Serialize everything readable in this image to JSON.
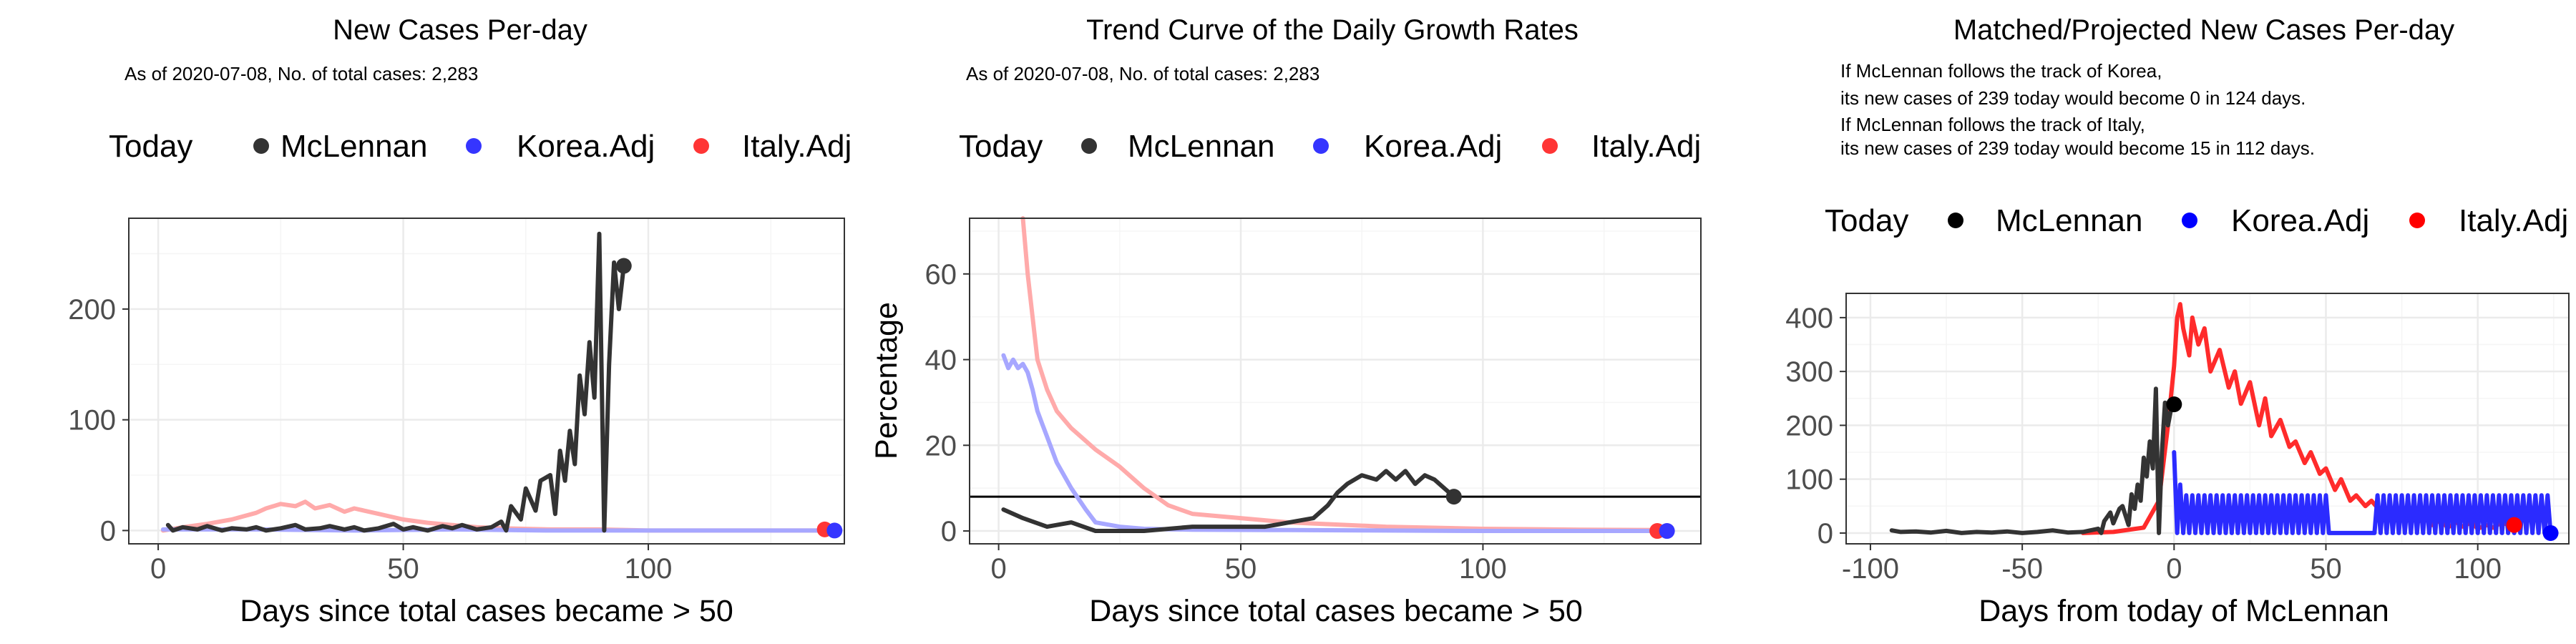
{
  "colors": {
    "today": "#000000",
    "mclennan": "#333333",
    "korea": "#3535ff",
    "italy": "#ff3535",
    "korea_faded": "#a7a7ff",
    "italy_faded": "#ffaaaa",
    "grid_major": "#ebebeb",
    "grid_minor": "#f5f5f5"
  },
  "legend": {
    "today": "Today",
    "mclennan": "McLennan",
    "korea": "Korea.Adj",
    "italy": "Italy.Adj"
  },
  "panels": [
    {
      "title": "New Cases Per-day",
      "subtitle": [
        "As of 2020-07-08, No. of total cases: 2,283"
      ]
    },
    {
      "title": "Trend Curve of the Daily Growth Rates",
      "subtitle": [
        "As of 2020-07-08, No. of total cases: 2,283"
      ]
    },
    {
      "title": "Matched/Projected New Cases Per-day",
      "subtitle": [
        "If McLennan follows the track of Korea,",
        "its new cases of 239 today would become 0 in 124 days.",
        "If McLennan follows the track of Italy,",
        "its new cases of 239 today would become 15 in 112 days."
      ]
    }
  ],
  "chart_data": [
    {
      "type": "line",
      "title": "New Cases Per-day",
      "xlabel": "Days since total cases became > 50",
      "ylabel": "",
      "xlim": [
        -6,
        140
      ],
      "ylim": [
        -12,
        282
      ],
      "xticks": [
        0,
        50,
        100
      ],
      "yticks": [
        0,
        100,
        200
      ],
      "series": [
        {
          "name": "Italy.Adj",
          "style": "faded",
          "x": [
            1,
            5,
            10,
            15,
            20,
            22,
            25,
            28,
            30,
            32,
            35,
            38,
            40,
            45,
            50,
            55,
            60,
            65,
            70,
            80,
            90,
            100,
            110,
            120,
            130,
            138
          ],
          "y": [
            0,
            3,
            6,
            10,
            16,
            20,
            24,
            22,
            26,
            20,
            23,
            17,
            20,
            15,
            10,
            7,
            5,
            3,
            2,
            1,
            1,
            0,
            0,
            0,
            0,
            0
          ]
        },
        {
          "name": "Korea.Adj",
          "style": "faded",
          "x": [
            1,
            20,
            40,
            60,
            80,
            100,
            120,
            139
          ],
          "y": [
            1,
            1,
            0,
            1,
            0,
            0,
            0,
            0
          ]
        },
        {
          "name": "McLennan",
          "style": "solid",
          "x": [
            2,
            3,
            5,
            8,
            10,
            13,
            15,
            18,
            20,
            22,
            25,
            28,
            30,
            33,
            35,
            38,
            40,
            42,
            45,
            48,
            50,
            52,
            55,
            58,
            60,
            62,
            65,
            68,
            70,
            71,
            72,
            74,
            75,
            77,
            78,
            80,
            81,
            82,
            83,
            84,
            85,
            86,
            87,
            88,
            89,
            90,
            91,
            92,
            93,
            94,
            95
          ],
          "y": [
            5,
            0,
            3,
            1,
            4,
            0,
            2,
            1,
            3,
            0,
            2,
            5,
            1,
            2,
            4,
            1,
            3,
            0,
            2,
            6,
            1,
            3,
            0,
            4,
            2,
            5,
            1,
            3,
            8,
            0,
            22,
            10,
            38,
            18,
            45,
            50,
            15,
            72,
            45,
            90,
            60,
            140,
            105,
            170,
            120,
            268,
            0,
            150,
            242,
            200,
            239
          ]
        }
      ],
      "today_points": [
        {
          "series": "McLennan",
          "x": 95,
          "y": 239
        },
        {
          "series": "Italy.Adj",
          "x": 136,
          "y": 1
        },
        {
          "series": "Korea.Adj",
          "x": 138,
          "y": 0
        }
      ]
    },
    {
      "type": "line",
      "title": "Trend Curve of the Daily Growth Rates",
      "xlabel": "Days since total cases became > 50",
      "ylabel": "Percentage",
      "xlim": [
        -6,
        145
      ],
      "ylim": [
        -3,
        73
      ],
      "xticks": [
        0,
        50,
        100
      ],
      "yticks": [
        0,
        20,
        40,
        60
      ],
      "hline": 8,
      "series": [
        {
          "name": "Italy.Adj",
          "style": "faded",
          "x": [
            5,
            6,
            7,
            8,
            10,
            12,
            15,
            18,
            20,
            25,
            30,
            35,
            40,
            50,
            60,
            70,
            80,
            100,
            120,
            138
          ],
          "y": [
            73,
            60,
            50,
            40,
            33,
            28,
            24,
            21,
            19,
            15,
            10,
            6,
            4,
            3,
            2,
            1.5,
            1,
            0.5,
            0.3,
            0.2
          ]
        },
        {
          "name": "Korea.Adj",
          "style": "faded",
          "x": [
            1,
            2,
            3,
            4,
            5,
            6,
            7,
            8,
            9,
            10,
            12,
            15,
            18,
            20,
            25,
            30,
            40,
            60,
            80,
            100,
            120,
            139
          ],
          "y": [
            41,
            38,
            40,
            38,
            39,
            37,
            33,
            28,
            25,
            22,
            16,
            10,
            5,
            2,
            1,
            0.5,
            0.3,
            0.2,
            0.1,
            0,
            0,
            0
          ]
        },
        {
          "name": "McLennan",
          "style": "solid",
          "x": [
            1,
            5,
            10,
            15,
            20,
            30,
            40,
            50,
            55,
            60,
            65,
            68,
            70,
            72,
            75,
            78,
            80,
            82,
            84,
            86,
            88,
            90,
            92,
            94
          ],
          "y": [
            5,
            3,
            1,
            2,
            0,
            0,
            1,
            1,
            1,
            2,
            3,
            6,
            9,
            11,
            13,
            12,
            14,
            12,
            14,
            11,
            13,
            12,
            10,
            8
          ]
        }
      ],
      "today_points": [
        {
          "series": "McLennan",
          "x": 94,
          "y": 8
        },
        {
          "series": "Italy.Adj",
          "x": 136,
          "y": 0
        },
        {
          "series": "Korea.Adj",
          "x": 138,
          "y": 0
        }
      ]
    },
    {
      "type": "line",
      "title": "Matched/Projected New Cases Per-day",
      "xlabel": "Days from today of McLennan",
      "ylabel": "",
      "xlim": [
        -108,
        130
      ],
      "ylim": [
        -20,
        445
      ],
      "xticks": [
        -100,
        -50,
        0,
        50,
        100
      ],
      "yticks": [
        0,
        100,
        200,
        300,
        400
      ],
      "series": [
        {
          "name": "Italy.Adj",
          "style": "solid",
          "x": [
            -30,
            -20,
            -10,
            -5,
            -2,
            0,
            1,
            2,
            3,
            5,
            6,
            8,
            10,
            12,
            15,
            18,
            20,
            22,
            25,
            28,
            30,
            32,
            35,
            38,
            40,
            43,
            45,
            48,
            50,
            53,
            55,
            58,
            60,
            63,
            65,
            68,
            70,
            73,
            75,
            78,
            80,
            83,
            85,
            88,
            90,
            93,
            95,
            98,
            100,
            103,
            105,
            108,
            110,
            112
          ],
          "y": [
            0,
            2,
            10,
            60,
            200,
            310,
            400,
            425,
            380,
            330,
            400,
            350,
            380,
            300,
            340,
            270,
            300,
            240,
            280,
            200,
            250,
            180,
            210,
            160,
            170,
            130,
            150,
            110,
            120,
            80,
            100,
            60,
            70,
            50,
            60,
            40,
            30,
            45,
            25,
            35,
            20,
            30,
            15,
            25,
            10,
            20,
            12,
            20,
            8,
            15,
            10,
            20,
            15,
            15
          ]
        },
        {
          "name": "Korea.Adj",
          "style": "solid",
          "x": [
            0,
            1,
            2,
            3,
            4,
            5,
            6,
            7,
            8,
            9,
            10,
            11,
            12,
            13,
            14,
            15,
            16,
            17,
            18,
            19,
            20,
            21,
            22,
            23,
            24,
            25,
            26,
            27,
            28,
            29,
            30,
            31,
            32,
            33,
            34,
            35,
            36,
            37,
            38,
            39,
            40,
            41,
            42,
            43,
            44,
            45,
            46,
            47,
            48,
            49,
            50,
            51,
            52,
            53,
            54,
            55,
            56,
            57,
            58,
            59,
            60,
            61,
            62,
            63,
            64,
            65,
            66,
            67,
            68,
            69,
            70,
            71,
            72,
            73,
            74,
            75,
            76,
            77,
            78,
            79,
            80,
            81,
            82,
            83,
            84,
            85,
            86,
            87,
            88,
            89,
            90,
            91,
            92,
            93,
            94,
            95,
            96,
            97,
            98,
            99,
            100,
            101,
            102,
            103,
            104,
            105,
            106,
            107,
            108,
            109,
            110,
            111,
            112,
            113,
            114,
            115,
            116,
            117,
            118,
            119,
            120,
            121,
            122,
            123,
            124
          ],
          "y": [
            150,
            0,
            90,
            0,
            70,
            0,
            70,
            0,
            70,
            0,
            70,
            0,
            70,
            0,
            70,
            0,
            70,
            0,
            70,
            0,
            70,
            0,
            70,
            0,
            70,
            0,
            70,
            0,
            70,
            0,
            70,
            0,
            70,
            0,
            70,
            0,
            70,
            0,
            70,
            0,
            70,
            0,
            70,
            0,
            70,
            0,
            70,
            0,
            70,
            0,
            70,
            0,
            0,
            0,
            0,
            0,
            0,
            0,
            0,
            0,
            0,
            0,
            0,
            0,
            0,
            0,
            0,
            70,
            0,
            70,
            0,
            70,
            0,
            70,
            0,
            70,
            0,
            70,
            0,
            70,
            0,
            70,
            0,
            70,
            0,
            70,
            0,
            70,
            0,
            70,
            0,
            70,
            0,
            70,
            0,
            70,
            0,
            70,
            0,
            70,
            0,
            70,
            0,
            70,
            0,
            70,
            0,
            70,
            0,
            70,
            0,
            70,
            0,
            70,
            0,
            70,
            0,
            70,
            0,
            70,
            0,
            70,
            0,
            70,
            0
          ]
        },
        {
          "name": "McLennan",
          "style": "solid",
          "x": [
            -93,
            -90,
            -85,
            -80,
            -75,
            -70,
            -65,
            -60,
            -55,
            -50,
            -45,
            -40,
            -35,
            -30,
            -25,
            -24,
            -23,
            -21,
            -20,
            -18,
            -17,
            -15,
            -14,
            -13,
            -12,
            -11,
            -10,
            -9,
            -8,
            -7,
            -6,
            -5,
            -4,
            -3,
            -2,
            -1,
            0
          ],
          "y": [
            5,
            2,
            3,
            1,
            4,
            0,
            2,
            1,
            3,
            0,
            2,
            5,
            1,
            2,
            8,
            0,
            22,
            38,
            18,
            45,
            50,
            15,
            72,
            45,
            90,
            60,
            140,
            105,
            170,
            120,
            268,
            0,
            150,
            242,
            200,
            230,
            239
          ]
        }
      ],
      "today_points": [
        {
          "series": "McLennan",
          "x": 0,
          "y": 239
        },
        {
          "series": "Italy.Adj",
          "x": 112,
          "y": 15
        },
        {
          "series": "Korea.Adj",
          "x": 124,
          "y": 0
        }
      ]
    }
  ]
}
